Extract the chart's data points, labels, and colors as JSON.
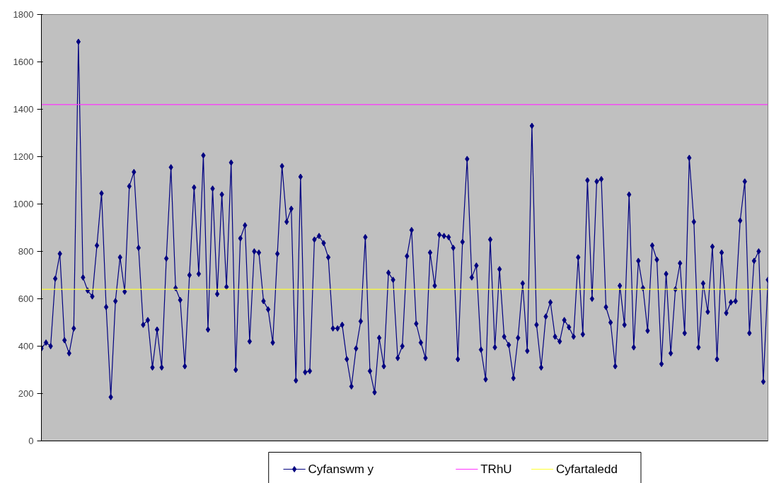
{
  "chart_data": {
    "type": "line",
    "categories": [
      null,
      null,
      null,
      null,
      null,
      null,
      null,
      null,
      null,
      null,
      null,
      null,
      null,
      null,
      null,
      null,
      null,
      null,
      null,
      null,
      null,
      null,
      null,
      null,
      null,
      null,
      null,
      null,
      null,
      null,
      null,
      null,
      null,
      null,
      null,
      null,
      null,
      null,
      null,
      null,
      null,
      null,
      null,
      null,
      null,
      null,
      null,
      null,
      null,
      null,
      null,
      null,
      null,
      null,
      null,
      null,
      null,
      null,
      null,
      null,
      null,
      null,
      null,
      null,
      null,
      null,
      null,
      null,
      null,
      null,
      null,
      null,
      null,
      null,
      null,
      null,
      null,
      null,
      null,
      null,
      null,
      null,
      null,
      null,
      null,
      null,
      null,
      null,
      null,
      null,
      null,
      null,
      null,
      null,
      null,
      null,
      null,
      null,
      null,
      null,
      null,
      null,
      null,
      null,
      null,
      null,
      null,
      null,
      null,
      null,
      null,
      null,
      null,
      null,
      null,
      null,
      null,
      null,
      null,
      null,
      null,
      null,
      null,
      null,
      null,
      null,
      null,
      null,
      null,
      null,
      null,
      null,
      null,
      null,
      null,
      null,
      null,
      null,
      null,
      null,
      null,
      null,
      null,
      null,
      null,
      null,
      null,
      null,
      null,
      null,
      null,
      null,
      null,
      null,
      null,
      null,
      null,
      null
    ],
    "series": [
      {
        "name": "Cyfanswm y",
        "color": "#000080",
        "values": [
          390,
          415,
          400,
          685,
          790,
          425,
          370,
          475,
          1685,
          690,
          635,
          610,
          825,
          1045,
          565,
          185,
          590,
          775,
          630,
          1075,
          1135,
          815,
          490,
          510,
          310,
          470,
          310,
          770,
          1155,
          645,
          595,
          315,
          700,
          1070,
          705,
          1205,
          470,
          1065,
          620,
          1040,
          650,
          1175,
          300,
          855,
          910,
          420,
          800,
          795,
          590,
          555,
          415,
          790,
          1160,
          925,
          980,
          255,
          1115,
          290,
          295,
          850,
          865,
          835,
          775,
          475,
          475,
          490,
          345,
          230,
          390,
          505,
          860,
          295,
          205,
          435,
          315,
          710,
          680,
          350,
          400,
          780,
          890,
          495,
          415,
          350,
          795,
          655,
          870,
          865,
          860,
          815,
          345,
          840,
          1190,
          690,
          740,
          385,
          260,
          850,
          395,
          725,
          440,
          405,
          265,
          435,
          665,
          380,
          1330,
          490,
          310,
          525,
          585,
          440,
          420,
          510,
          480,
          440,
          775,
          450,
          1100,
          600,
          1095,
          1105,
          565,
          500,
          315,
          655,
          490,
          1040,
          395,
          760,
          645,
          465,
          825,
          765,
          325,
          705,
          370,
          640,
          750,
          455,
          1195,
          925,
          395,
          665,
          545,
          820,
          345,
          795,
          540,
          585,
          590,
          930,
          1095,
          455,
          760,
          800,
          250,
          680
        ]
      }
    ],
    "ref_lines": [
      {
        "axis": "y",
        "value": 1420,
        "label": "TRhU",
        "color": "#ff33ff"
      },
      {
        "axis": "y",
        "value": 640,
        "label": "Cyfartaledd",
        "color": "#ffff33"
      }
    ],
    "ylim": [
      0,
      1800
    ],
    "yticks": [
      0,
      200,
      400,
      600,
      800,
      1000,
      1200,
      1400,
      1600,
      1800
    ],
    "marker": "diamond",
    "line_style": "solid",
    "grid": false,
    "legend": "bottom",
    "tick_labels": "y"
  }
}
